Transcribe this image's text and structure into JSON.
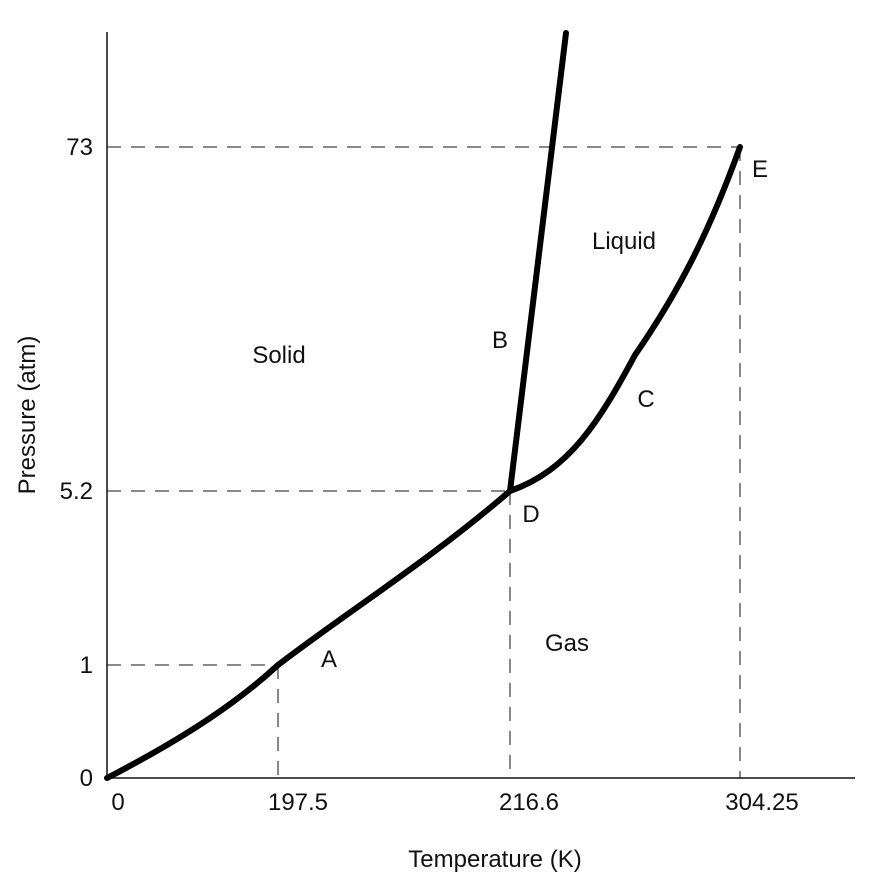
{
  "axes": {
    "xlabel": "Temperature (K)",
    "ylabel": "Pressure (atm)",
    "x_ticks": [
      "0",
      "197.5",
      "216.6",
      "304.25"
    ],
    "y_ticks": [
      "0",
      "1",
      "5.2",
      "73"
    ]
  },
  "regions": {
    "solid": "Solid",
    "liquid": "Liquid",
    "gas": "Gas"
  },
  "points": {
    "a": "A",
    "b": "B",
    "c": "C",
    "d": "D",
    "e": "E"
  },
  "colors": {
    "line": "#000000",
    "text": "#111111",
    "background": "#ffffff"
  }
}
